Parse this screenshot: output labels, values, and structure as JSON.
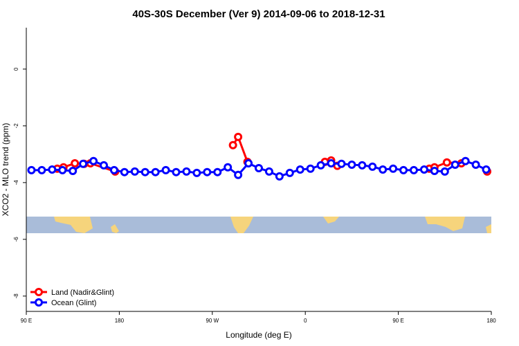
{
  "chart_data": {
    "type": "line",
    "title": "40S-30S December (Ver 9)   2014-09-06 to 2018-12-31",
    "x_label": "Longitude (deg E)",
    "y_label": "XCO2 - MLO trend (ppm)",
    "xlim": [
      90,
      540
    ],
    "ylim": [
      -8.54,
      1.46
    ],
    "xticks": [
      {
        "value": 90,
        "label": "90 E"
      },
      {
        "value": 180,
        "label": "180"
      },
      {
        "value": 270,
        "label": "90 W"
      },
      {
        "value": 360,
        "label": "0"
      },
      {
        "value": 450,
        "label": "90 E"
      },
      {
        "value": 540,
        "label": "180"
      }
    ],
    "yticks": [
      0,
      -2,
      -4,
      -6,
      -8
    ],
    "legend": "bottom-left",
    "series": [
      {
        "name": "Land (Nadir&Glint)",
        "color": "#ff0000",
        "x": [
          120,
          126,
          137,
          146,
          152,
          176,
          null,
          290,
          295,
          304,
          null,
          379,
          385,
          391,
          null,
          480,
          485,
          497,
          511,
          null,
          536
        ],
        "values": [
          -3.51,
          -3.46,
          -3.32,
          -3.34,
          -3.32,
          -3.61,
          null,
          -2.68,
          -2.39,
          -3.27,
          null,
          -3.27,
          -3.22,
          -3.41,
          null,
          -3.51,
          -3.46,
          -3.29,
          -3.32,
          null,
          -3.61
        ]
      },
      {
        "name": "Ocean (Glint)",
        "color": "#0000ff",
        "x": [
          95,
          105,
          115,
          125,
          135,
          145,
          155,
          165,
          175,
          185,
          195,
          205,
          215,
          225,
          235,
          245,
          255,
          265,
          275,
          285,
          295,
          305,
          315,
          325,
          335,
          345,
          355,
          365,
          375,
          385,
          395,
          405,
          415,
          425,
          435,
          445,
          455,
          465,
          475,
          485,
          495,
          505,
          515,
          525,
          535
        ],
        "values": [
          -3.56,
          -3.56,
          -3.54,
          -3.56,
          -3.59,
          -3.34,
          -3.24,
          -3.39,
          -3.56,
          -3.63,
          -3.61,
          -3.63,
          -3.63,
          -3.56,
          -3.63,
          -3.61,
          -3.66,
          -3.63,
          -3.63,
          -3.46,
          -3.73,
          -3.32,
          -3.49,
          -3.61,
          -3.78,
          -3.66,
          -3.54,
          -3.51,
          -3.39,
          -3.32,
          -3.34,
          -3.37,
          -3.39,
          -3.44,
          -3.54,
          -3.51,
          -3.56,
          -3.56,
          -3.54,
          -3.59,
          -3.61,
          -3.37,
          -3.24,
          -3.37,
          -3.54
        ]
      }
    ]
  }
}
